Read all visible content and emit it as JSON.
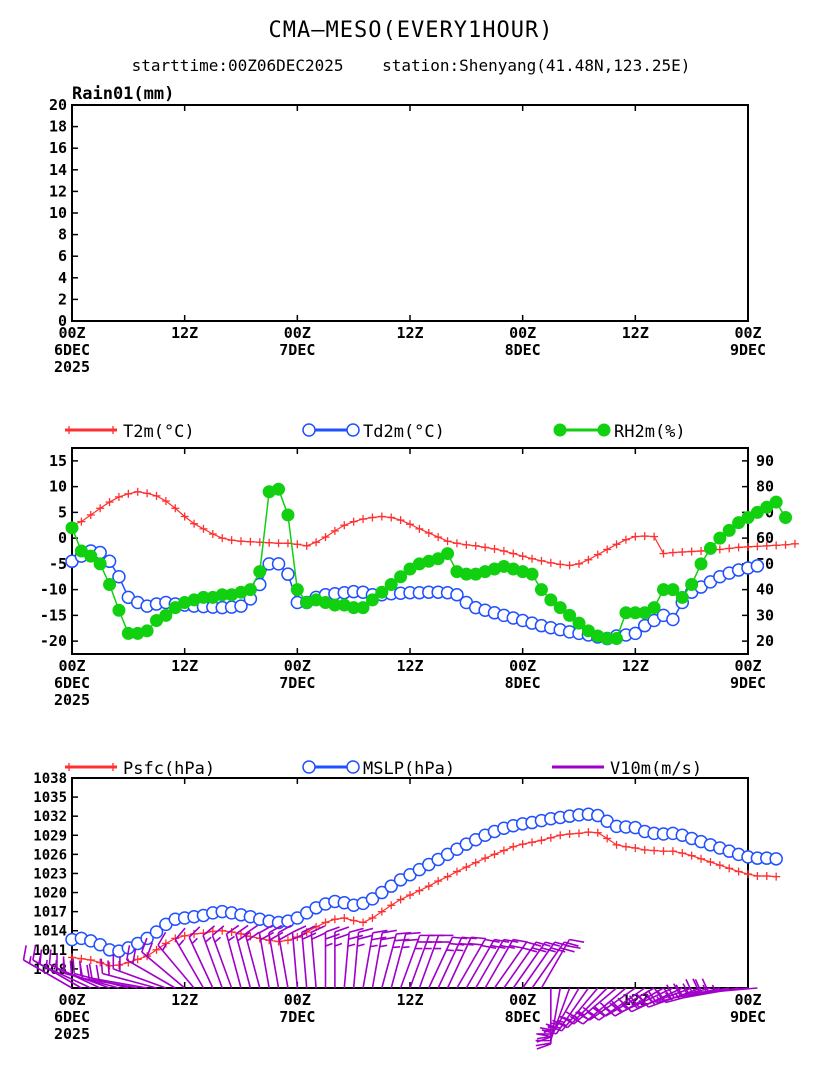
{
  "title": "CMA–MESO(EVERY1HOUR)",
  "subtitle_start": "starttime:00Z06DEC2025",
  "subtitle_station": "station:Shenyang(41.48N,123.25E)",
  "x_ticks": [
    {
      "t": 0,
      "line1": "00Z",
      "line2": "6DEC",
      "line3": "2025"
    },
    {
      "t": 12,
      "line1": "12Z",
      "line2": "",
      "line3": ""
    },
    {
      "t": 24,
      "line1": "00Z",
      "line2": "7DEC",
      "line3": ""
    },
    {
      "t": 36,
      "line1": "12Z",
      "line2": "",
      "line3": ""
    },
    {
      "t": 48,
      "line1": "00Z",
      "line2": "8DEC",
      "line3": ""
    },
    {
      "t": 60,
      "line1": "12Z",
      "line2": "",
      "line3": ""
    },
    {
      "t": 72,
      "line1": "00Z",
      "line2": "9DEC",
      "line3": ""
    }
  ],
  "colors": {
    "t2m": "#ff3030",
    "td2m": "#2050ff",
    "rh2m": "#10d010",
    "psfc": "#ff3030",
    "mslp": "#2050ff",
    "wind": "#a000c8"
  },
  "chart_data": [
    {
      "type": "bar",
      "ylabel": "Rain01(mm)",
      "ylim": [
        0,
        20
      ],
      "yticks": [
        0,
        2,
        4,
        6,
        8,
        10,
        12,
        14,
        16,
        18,
        20
      ],
      "x_hours": [
        0,
        72
      ],
      "values": []
    },
    {
      "type": "line",
      "ylim_left": [
        -22.5,
        17.5
      ],
      "yticks_left": [
        -20,
        -15,
        -10,
        -5,
        0,
        5,
        10,
        15
      ],
      "ylim_right": [
        15,
        95
      ],
      "yticks_right": [
        20,
        30,
        40,
        50,
        60,
        70,
        80,
        90
      ],
      "series": [
        {
          "name": "T2m(°C)",
          "axis": "left",
          "x_step": 1,
          "values": [
            2.5,
            3.2,
            4.5,
            5.8,
            7,
            8,
            8.6,
            9,
            8.7,
            8.2,
            7.2,
            5.8,
            4.2,
            2.8,
            1.8,
            0.8,
            0,
            -0.4,
            -0.6,
            -0.7,
            -0.8,
            -0.9,
            -1.0,
            -1.0,
            -1.2,
            -1.5,
            -0.8,
            0.2,
            1.4,
            2.5,
            3.2,
            3.7,
            4.0,
            4.2,
            4.0,
            3.5,
            2.7,
            1.8,
            1.0,
            0.2,
            -0.6,
            -1.0,
            -1.3,
            -1.5,
            -1.8,
            -2.1,
            -2.5,
            -3.0,
            -3.5,
            -4.0,
            -4.4,
            -4.8,
            -5.1,
            -5.3,
            -5.0,
            -4.2,
            -3.2,
            -2.2,
            -1.2,
            -0.3,
            0.3,
            0.4,
            0.3,
            -3.0,
            -2.8,
            -2.7,
            -2.6,
            -2.5,
            -2.3,
            -2.2,
            -2.0,
            -1.8,
            -1.7,
            -1.6,
            -1.5,
            -1.4,
            -1.3,
            -1.1
          ]
        },
        {
          "name": "Td2m(°C)",
          "axis": "left",
          "x_step": 1,
          "values": [
            -4.5,
            -3.5,
            -2.5,
            -2.8,
            -4.5,
            -7.5,
            -11.5,
            -12.5,
            -13.2,
            -12.8,
            -12.5,
            -12.8,
            -13.0,
            -13.2,
            -13.3,
            -13.4,
            -13.5,
            -13.4,
            -13.2,
            -11.8,
            -9.0,
            -5.0,
            -5.0,
            -7.0,
            -12.5,
            -12.5,
            -11.5,
            -11.0,
            -10.8,
            -10.6,
            -10.4,
            -10.5,
            -11.0,
            -11.0,
            -10.8,
            -10.7,
            -10.6,
            -10.6,
            -10.5,
            -10.5,
            -10.6,
            -11.0,
            -12.5,
            -13.5,
            -14.0,
            -14.5,
            -15.0,
            -15.5,
            -16.0,
            -16.5,
            -17.0,
            -17.4,
            -17.8,
            -18.2,
            -18.5,
            -18.8,
            -19.2,
            -19.5,
            -19.0,
            -18.8,
            -18.5,
            -17.0,
            -16.0,
            -15.0,
            -15.8,
            -12.5,
            -10.5,
            -9.5,
            -8.5,
            -7.5,
            -6.8,
            -6.2,
            -5.8,
            -5.4
          ]
        },
        {
          "name": "RH2m(%)",
          "axis": "right",
          "x_step": 1,
          "values": [
            64,
            55,
            53,
            50,
            42,
            32,
            23,
            23,
            24,
            28,
            30,
            33,
            35,
            36,
            37,
            37,
            38,
            38,
            39,
            40,
            47,
            78,
            79,
            69,
            40,
            35,
            36,
            35,
            34,
            34,
            33,
            33,
            36,
            39,
            42,
            45,
            48,
            50,
            51,
            52,
            54,
            47,
            46,
            46,
            47,
            48,
            49,
            48,
            47,
            46,
            40,
            36,
            33,
            30,
            27,
            24,
            22,
            21,
            21,
            31,
            31,
            31,
            33,
            40,
            40,
            37,
            42,
            50,
            56,
            60,
            63,
            66,
            68,
            70,
            72,
            74,
            68
          ]
        }
      ]
    },
    {
      "type": "line",
      "ylim": [
        1005,
        1038
      ],
      "yticks": [
        1008,
        1011,
        1014,
        1017,
        1020,
        1023,
        1026,
        1029,
        1032,
        1035,
        1038
      ],
      "series": [
        {
          "name": "Psfc(hPa)",
          "x_step": 1,
          "values": [
            1009.8,
            1009.6,
            1009.4,
            1009.0,
            1008.5,
            1008.6,
            1009.0,
            1009.5,
            1010.0,
            1011.0,
            1012.0,
            1012.8,
            1013.2,
            1013.5,
            1013.6,
            1013.9,
            1014.0,
            1013.8,
            1013.5,
            1013.1,
            1012.8,
            1012.5,
            1012.3,
            1012.5,
            1013.0,
            1013.8,
            1014.6,
            1015.3,
            1015.8,
            1016.0,
            1015.6,
            1015.3,
            1016.0,
            1017.0,
            1018.0,
            1018.9,
            1019.6,
            1020.3,
            1021.0,
            1021.8,
            1022.5,
            1023.3,
            1024.0,
            1024.7,
            1025.4,
            1026.0,
            1026.6,
            1027.2,
            1027.6,
            1027.9,
            1028.2,
            1028.6,
            1029.0,
            1029.2,
            1029.3,
            1029.5,
            1029.4,
            1028.5,
            1027.5,
            1027.2,
            1027.0,
            1026.7,
            1026.6,
            1026.5,
            1026.5,
            1026.2,
            1025.8,
            1025.3,
            1024.8,
            1024.3,
            1023.8,
            1023.3,
            1022.9,
            1022.6,
            1022.6,
            1022.5
          ]
        },
        {
          "name": "MSLP(hPa)",
          "x_step": 1,
          "values": [
            1012.6,
            1012.8,
            1012.4,
            1011.8,
            1011.0,
            1010.8,
            1011.3,
            1012.0,
            1012.8,
            1013.8,
            1015.0,
            1015.8,
            1016.0,
            1016.2,
            1016.4,
            1016.8,
            1017.0,
            1016.8,
            1016.5,
            1016.2,
            1015.8,
            1015.5,
            1015.3,
            1015.5,
            1016.0,
            1016.8,
            1017.6,
            1018.2,
            1018.6,
            1018.4,
            1018.0,
            1018.3,
            1019.0,
            1020.0,
            1021.0,
            1022.0,
            1022.8,
            1023.6,
            1024.4,
            1025.2,
            1026.0,
            1026.8,
            1027.6,
            1028.3,
            1029.0,
            1029.6,
            1030.1,
            1030.5,
            1030.8,
            1031.0,
            1031.3,
            1031.6,
            1031.8,
            1032.0,
            1032.2,
            1032.3,
            1032.1,
            1031.2,
            1030.4,
            1030.3,
            1030.2,
            1029.6,
            1029.3,
            1029.2,
            1029.3,
            1029.0,
            1028.5,
            1028.0,
            1027.5,
            1027.0,
            1026.5,
            1026.0,
            1025.6,
            1025.4,
            1025.4,
            1025.3
          ]
        },
        {
          "name": "V10m(m/s)",
          "type": "wind_barbs",
          "x_step": 1,
          "direction_deg": [
            300,
            300,
            295,
            295,
            290,
            285,
            285,
            280,
            280,
            285,
            290,
            300,
            310,
            320,
            330,
            335,
            340,
            340,
            345,
            345,
            345,
            350,
            350,
            350,
            355,
            355,
            355,
            0,
            0,
            5,
            5,
            10,
            10,
            15,
            15,
            20,
            20,
            20,
            25,
            25,
            25,
            30,
            30,
            30,
            30,
            35,
            35,
            35,
            35,
            35,
            30,
            180,
            190,
            200,
            210,
            215,
            220,
            225,
            230,
            230,
            235,
            235,
            240,
            240,
            245,
            245,
            250,
            250,
            255,
            255,
            260,
            260,
            265,
            265
          ],
          "speed_ms": [
            6,
            6,
            6,
            6,
            7,
            7,
            7,
            8,
            8,
            8,
            8,
            7,
            7,
            6,
            6,
            6,
            6,
            6,
            6,
            7,
            7,
            7,
            7,
            8,
            8,
            8,
            8,
            9,
            9,
            9,
            9,
            9,
            9,
            9,
            9,
            9,
            9,
            9,
            9,
            9,
            8,
            8,
            8,
            8,
            8,
            8,
            8,
            8,
            8,
            8,
            8,
            9,
            9,
            9,
            9,
            9,
            9,
            9,
            9,
            9,
            9,
            9,
            9,
            9,
            9,
            9,
            9,
            9,
            9,
            9,
            9,
            9,
            9,
            9
          ]
        }
      ]
    }
  ]
}
